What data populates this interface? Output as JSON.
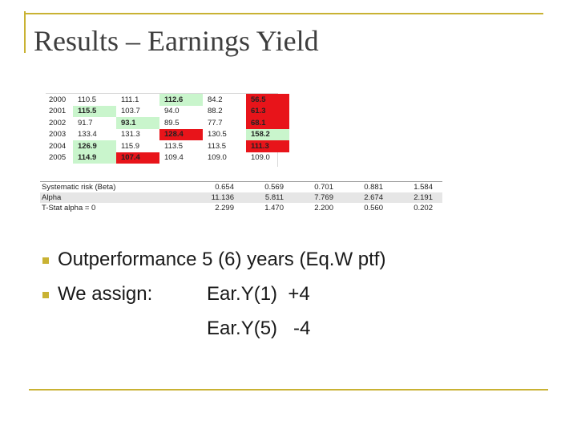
{
  "title": "Results – Earnings Yield",
  "colors": {
    "accent": "#c9b233",
    "highlight_green": "#c9f5cc",
    "highlight_red": "#e8141a",
    "shaded_row": "#e6e6e6"
  },
  "upper_table": {
    "rows": [
      {
        "year": "2000",
        "cells": [
          {
            "value": "110.5",
            "highlight": "none",
            "bold": false
          },
          {
            "value": "111.1",
            "highlight": "none",
            "bold": false
          },
          {
            "value": "112.6",
            "highlight": "green",
            "bold": true
          },
          {
            "value": "84.2",
            "highlight": "none",
            "bold": false
          },
          {
            "value": "56.5",
            "highlight": "red",
            "bold": true
          }
        ]
      },
      {
        "year": "2001",
        "cells": [
          {
            "value": "115.5",
            "highlight": "green",
            "bold": true
          },
          {
            "value": "103.7",
            "highlight": "none",
            "bold": false
          },
          {
            "value": "94.0",
            "highlight": "none",
            "bold": false
          },
          {
            "value": "88.2",
            "highlight": "none",
            "bold": false
          },
          {
            "value": "61.3",
            "highlight": "red",
            "bold": true
          }
        ]
      },
      {
        "year": "2002",
        "cells": [
          {
            "value": "91.7",
            "highlight": "none",
            "bold": false
          },
          {
            "value": "93.1",
            "highlight": "green",
            "bold": true
          },
          {
            "value": "89.5",
            "highlight": "none",
            "bold": false
          },
          {
            "value": "77.7",
            "highlight": "none",
            "bold": false
          },
          {
            "value": "68.1",
            "highlight": "red",
            "bold": true
          }
        ]
      },
      {
        "year": "2003",
        "cells": [
          {
            "value": "133.4",
            "highlight": "none",
            "bold": false
          },
          {
            "value": "131.3",
            "highlight": "none",
            "bold": false
          },
          {
            "value": "128.4",
            "highlight": "red",
            "bold": true
          },
          {
            "value": "130.5",
            "highlight": "none",
            "bold": false
          },
          {
            "value": "158.2",
            "highlight": "green",
            "bold": true
          }
        ]
      },
      {
        "year": "2004",
        "cells": [
          {
            "value": "126.9",
            "highlight": "green",
            "bold": true
          },
          {
            "value": "115.9",
            "highlight": "none",
            "bold": false
          },
          {
            "value": "113.5",
            "highlight": "none",
            "bold": false
          },
          {
            "value": "113.5",
            "highlight": "none",
            "bold": false
          },
          {
            "value": "111.3",
            "highlight": "red",
            "bold": true
          }
        ]
      },
      {
        "year": "2005",
        "cells": [
          {
            "value": "114.9",
            "highlight": "green",
            "bold": true
          },
          {
            "value": "107.4",
            "highlight": "red",
            "bold": true
          },
          {
            "value": "109.4",
            "highlight": "none",
            "bold": false
          },
          {
            "value": "109.0",
            "highlight": "none",
            "bold": false
          },
          {
            "value": "109.0",
            "highlight": "none",
            "bold": false
          }
        ]
      }
    ]
  },
  "stats_table": {
    "rows": [
      {
        "label": "Systematic risk (Beta)",
        "values": [
          "0.654",
          "0.569",
          "0.701",
          "0.881",
          "1.584"
        ],
        "shaded": false
      },
      {
        "label": "Alpha",
        "values": [
          "11.136",
          "5.811",
          "7.769",
          "2.674",
          "2.191"
        ],
        "shaded": true
      },
      {
        "label": "T-Stat alpha = 0",
        "values": [
          "2.299",
          "1.470",
          "2.200",
          "0.560",
          "0.202"
        ],
        "shaded": false
      }
    ]
  },
  "bullets": [
    {
      "text": "Outperformance 5 (6) years (Eq.W ptf)"
    },
    {
      "text": "We assign:",
      "items": [
        "Ear.Y(1)  +4",
        "Ear.Y(5)   -4"
      ]
    }
  ]
}
